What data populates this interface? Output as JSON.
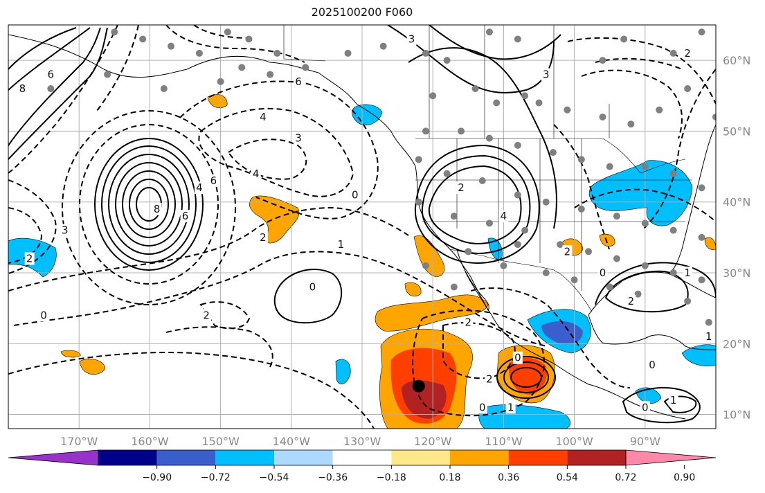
{
  "title": "2025100200 F060",
  "map": {
    "lon_range": [
      -180,
      -80
    ],
    "lat_range": [
      8,
      65
    ],
    "lat_ticks": [
      {
        "value": 10,
        "label": "10°N"
      },
      {
        "value": 20,
        "label": "20°N"
      },
      {
        "value": 30,
        "label": "30°N"
      },
      {
        "value": 40,
        "label": "40°N"
      },
      {
        "value": 50,
        "label": "50°N"
      },
      {
        "value": 60,
        "label": "60°N"
      }
    ],
    "lon_ticks": [
      {
        "value": -170,
        "label": "170°W"
      },
      {
        "value": -160,
        "label": "160°W"
      },
      {
        "value": -150,
        "label": "150°W"
      },
      {
        "value": -140,
        "label": "140°W"
      },
      {
        "value": -130,
        "label": "130°W"
      },
      {
        "value": -120,
        "label": "120°W"
      },
      {
        "value": -110,
        "label": "110°W"
      },
      {
        "value": -100,
        "label": "100°W"
      },
      {
        "value": -90,
        "label": "90°W"
      }
    ],
    "gridlines": true,
    "contour_labels": [
      {
        "lon": -178,
        "lat": 56,
        "text": "8"
      },
      {
        "lon": -174,
        "lat": 58,
        "text": "6"
      },
      {
        "lon": -151,
        "lat": 43,
        "text": "6"
      },
      {
        "lon": -139,
        "lat": 57,
        "text": "6"
      },
      {
        "lon": -144,
        "lat": 52,
        "text": "4"
      },
      {
        "lon": -139,
        "lat": 49,
        "text": "3"
      },
      {
        "lon": -145,
        "lat": 44,
        "text": "4"
      },
      {
        "lon": -144,
        "lat": 35,
        "text": "2"
      },
      {
        "lon": -133,
        "lat": 34,
        "text": "1"
      },
      {
        "lon": -131,
        "lat": 41,
        "text": "0"
      },
      {
        "lon": -172,
        "lat": 36,
        "text": "3"
      },
      {
        "lon": -177,
        "lat": 32,
        "text": "2"
      },
      {
        "lon": -175,
        "lat": 24,
        "text": "0"
      },
      {
        "lon": -159,
        "lat": 39,
        "text": "8"
      },
      {
        "lon": -155,
        "lat": 38,
        "text": "6"
      },
      {
        "lon": -153,
        "lat": 42,
        "text": "4"
      },
      {
        "lon": -152,
        "lat": 24,
        "text": "2"
      },
      {
        "lon": -137,
        "lat": 28,
        "text": "0"
      },
      {
        "lon": -115,
        "lat": 23,
        "text": "2"
      },
      {
        "lon": -116,
        "lat": 42,
        "text": "2"
      },
      {
        "lon": -110,
        "lat": 38,
        "text": "4"
      },
      {
        "lon": -108,
        "lat": 18,
        "text": "0"
      },
      {
        "lon": -112,
        "lat": 15,
        "text": "2"
      },
      {
        "lon": -113,
        "lat": 11,
        "text": "0"
      },
      {
        "lon": -109,
        "lat": 11,
        "text": "1"
      },
      {
        "lon": -101,
        "lat": 33,
        "text": "2"
      },
      {
        "lon": -96,
        "lat": 30,
        "text": "0"
      },
      {
        "lon": -92,
        "lat": 26,
        "text": "2"
      },
      {
        "lon": -84,
        "lat": 30,
        "text": "1"
      },
      {
        "lon": -89,
        "lat": 17,
        "text": "0"
      },
      {
        "lon": -81,
        "lat": 21,
        "text": "1"
      },
      {
        "lon": -90,
        "lat": 11,
        "text": "0"
      },
      {
        "lon": -86,
        "lat": 12,
        "text": "1"
      },
      {
        "lon": -104,
        "lat": 58,
        "text": "3"
      },
      {
        "lon": -123,
        "lat": 63,
        "text": "3"
      },
      {
        "lon": -84,
        "lat": 61,
        "text": "2"
      }
    ],
    "centers": [
      {
        "lon": -122,
        "lat": 14,
        "color": "#000000"
      }
    ]
  },
  "colorbar": {
    "colors": [
      "#9932cc",
      "#00008b",
      "#3a5fcd",
      "#00bfff",
      "#add8ff",
      "#ffffff",
      "#ffe88a",
      "#ffa500",
      "#ff3f00",
      "#b22222",
      "#ff88aa"
    ],
    "tick_labels": [
      "−0.90",
      "−0.72",
      "−0.54",
      "−0.36",
      "−0.18",
      "0.18",
      "0.36",
      "0.54",
      "0.72",
      "0.90"
    ]
  }
}
